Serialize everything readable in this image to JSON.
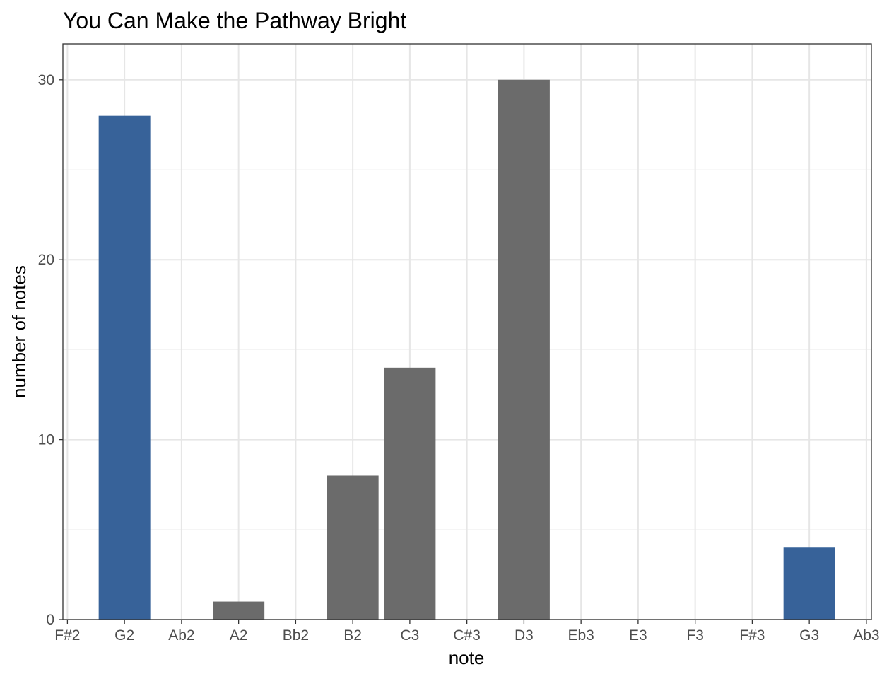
{
  "chart_data": {
    "type": "bar",
    "title": "You Can Make the Pathway Bright",
    "xlabel": "note",
    "ylabel": "number of notes",
    "categories": [
      "F#2",
      "G2",
      "Ab2",
      "A2",
      "Bb2",
      "B2",
      "C3",
      "C#3",
      "D3",
      "Eb3",
      "E3",
      "F3",
      "F#3",
      "G3",
      "Ab3"
    ],
    "values": [
      0,
      28,
      0,
      1,
      0,
      8,
      14,
      0,
      30,
      0,
      0,
      0,
      0,
      4,
      0
    ],
    "highlighted": [
      false,
      true,
      false,
      false,
      false,
      false,
      false,
      false,
      false,
      false,
      false,
      false,
      false,
      true,
      false
    ],
    "yticks": [
      0,
      10,
      20,
      30
    ],
    "ylim": [
      0,
      32
    ],
    "grid": true,
    "legend": "none",
    "colors": {
      "highlight": "#376299",
      "default": "#6b6b6b",
      "grid_major": "#e6e6e6",
      "grid_minor": "#f2f2f2",
      "border": "#333333"
    }
  }
}
